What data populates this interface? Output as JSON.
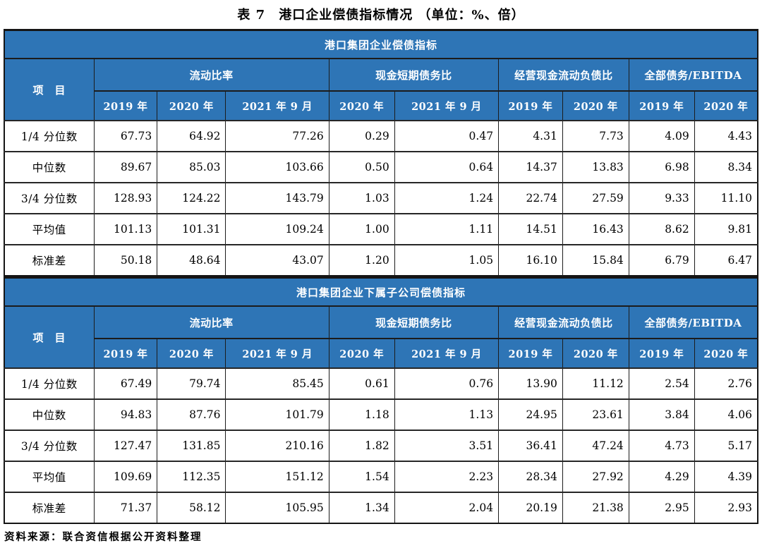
{
  "title": "表 7　港口企业偿债指标情况 （单位：%、倍）",
  "source_note": "资料来源：联合资信根据公开资料整理",
  "colors": {
    "header_blue": "#2E75B6",
    "header_text": "#FFFFFF",
    "border_dark": "#1c1c1c"
  },
  "header": {
    "item_label": "项　目",
    "groups": [
      {
        "label": "流动比率",
        "cols": [
          "2019 年",
          "2020 年",
          "2021 年 9 月"
        ]
      },
      {
        "label": "现金短期债务比",
        "cols": [
          "2020 年",
          "2021 年 9 月"
        ]
      },
      {
        "label": "经营现金流动负债比",
        "cols": [
          "2019 年",
          "2020 年"
        ]
      },
      {
        "label": "全部债务/EBITDA",
        "cols": [
          "2019 年",
          "2020 年"
        ]
      }
    ]
  },
  "sections": [
    {
      "band": "港口集团企业偿债指标",
      "rows": [
        {
          "label": "1/4 分位数",
          "values": [
            "67.73",
            "64.92",
            "77.26",
            "0.29",
            "0.47",
            "4.31",
            "7.73",
            "4.09",
            "4.43"
          ]
        },
        {
          "label": "中位数",
          "values": [
            "89.67",
            "85.03",
            "103.66",
            "0.50",
            "0.64",
            "14.37",
            "13.83",
            "6.98",
            "8.34"
          ]
        },
        {
          "label": "3/4 分位数",
          "values": [
            "128.93",
            "124.22",
            "143.79",
            "1.03",
            "1.24",
            "22.74",
            "27.59",
            "9.33",
            "11.10"
          ]
        },
        {
          "label": "平均值",
          "values": [
            "101.13",
            "101.31",
            "109.24",
            "1.00",
            "1.11",
            "14.51",
            "16.43",
            "8.62",
            "9.81"
          ]
        },
        {
          "label": "标准差",
          "values": [
            "50.18",
            "48.64",
            "43.07",
            "1.20",
            "1.05",
            "16.10",
            "15.84",
            "6.79",
            "6.47"
          ]
        }
      ]
    },
    {
      "band": "港口集团企业下属子公司偿债指标",
      "rows": [
        {
          "label": "1/4 分位数",
          "values": [
            "67.49",
            "79.74",
            "85.45",
            "0.61",
            "0.76",
            "13.90",
            "11.12",
            "2.54",
            "2.76"
          ]
        },
        {
          "label": "中位数",
          "values": [
            "94.83",
            "87.76",
            "101.79",
            "1.18",
            "1.13",
            "24.95",
            "23.61",
            "3.84",
            "4.06"
          ]
        },
        {
          "label": "3/4 分位数",
          "values": [
            "127.47",
            "131.85",
            "210.16",
            "1.82",
            "3.51",
            "36.41",
            "47.24",
            "4.73",
            "5.17"
          ]
        },
        {
          "label": "平均值",
          "values": [
            "109.69",
            "112.35",
            "151.12",
            "1.54",
            "2.23",
            "28.34",
            "27.92",
            "4.29",
            "4.39"
          ]
        },
        {
          "label": "标准差",
          "values": [
            "71.37",
            "58.12",
            "105.95",
            "1.34",
            "2.04",
            "20.19",
            "21.38",
            "2.95",
            "2.93"
          ]
        }
      ]
    }
  ]
}
